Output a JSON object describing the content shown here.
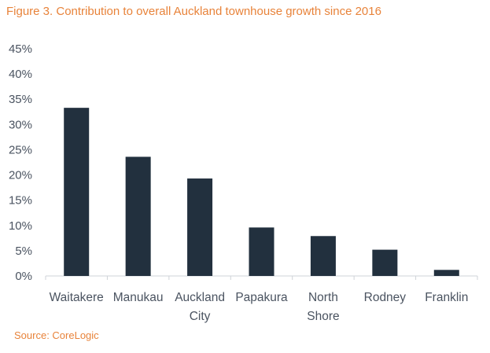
{
  "title": "Figure 3. Contribution to overall Auckland townhouse growth since 2016",
  "source": "Source: CoreLogic",
  "colors": {
    "bar": "#22303e",
    "accent": "#e8833a",
    "axis": "#cfd3d8",
    "text": "#4a5360"
  },
  "chart_data": {
    "type": "bar",
    "title": "Figure 3. Contribution to overall Auckland townhouse growth since 2016",
    "xlabel": "",
    "ylabel": "",
    "ylim": [
      0,
      45
    ],
    "yticks": [
      "0%",
      "5%",
      "10%",
      "15%",
      "20%",
      "25%",
      "30%",
      "35%",
      "40%",
      "45%"
    ],
    "grid": false,
    "categories": [
      [
        "Waitakere"
      ],
      [
        "Manukau"
      ],
      [
        "Auckland",
        "City"
      ],
      [
        "Papakura"
      ],
      [
        "North",
        "Shore"
      ],
      [
        "Rodney"
      ],
      [
        "Franklin"
      ]
    ],
    "values": [
      33.3,
      23.6,
      19.3,
      9.6,
      7.9,
      5.2,
      1.2
    ]
  }
}
